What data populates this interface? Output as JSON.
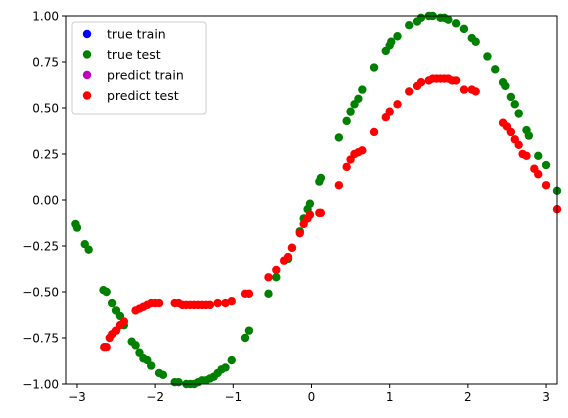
{
  "chart_data": {
    "type": "scatter",
    "title": "",
    "xlabel": "",
    "ylabel": "",
    "xlim": [
      -3.14,
      3.14
    ],
    "ylim": [
      -1.0,
      1.0
    ],
    "x_ticks": [
      -3,
      -2,
      -1,
      0,
      1,
      2,
      3
    ],
    "y_ticks": [
      -1.0,
      -0.75,
      -0.5,
      -0.25,
      0.0,
      0.25,
      0.5,
      0.75,
      1.0
    ],
    "x_tick_labels": [
      "−3",
      "−2",
      "−1",
      "0",
      "1",
      "2",
      "3"
    ],
    "y_tick_labels": [
      "−1.00",
      "−0.75",
      "−0.50",
      "−0.25",
      "0.00",
      "0.25",
      "0.50",
      "0.75",
      "1.00"
    ],
    "grid": false,
    "legend_position": "upper-left",
    "series": [
      {
        "name": "true train",
        "color": "#0000ff",
        "x": [],
        "y": []
      },
      {
        "name": "true test",
        "color": "#008000",
        "x": [
          -3.02,
          -3.0,
          -2.9,
          -2.85,
          -2.66,
          -2.62,
          -2.55,
          -2.5,
          -2.45,
          -2.4,
          -2.3,
          -2.25,
          -2.2,
          -2.15,
          -2.1,
          -2.05,
          -1.95,
          -1.9,
          -1.75,
          -1.7,
          -1.6,
          -1.55,
          -1.5,
          -1.45,
          -1.4,
          -1.35,
          -1.3,
          -1.25,
          -1.2,
          -1.15,
          -1.1,
          -1.02,
          -0.85,
          -0.8,
          -0.55,
          -0.45,
          -0.3,
          -0.25,
          -0.15,
          -0.1,
          -0.05,
          -0.02,
          0.1,
          0.12,
          0.35,
          0.45,
          0.5,
          0.55,
          0.6,
          0.65,
          0.8,
          0.95,
          1.0,
          1.02,
          1.1,
          1.25,
          1.35,
          1.4,
          1.5,
          1.55,
          1.65,
          1.7,
          1.75,
          1.85,
          1.95,
          2.05,
          2.1,
          2.25,
          2.35,
          2.45,
          2.48,
          2.55,
          2.6,
          2.65,
          2.75,
          2.78,
          2.9,
          3.0,
          3.14
        ],
        "y": [
          -0.13,
          -0.15,
          -0.24,
          -0.27,
          -0.49,
          -0.5,
          -0.56,
          -0.6,
          -0.63,
          -0.68,
          -0.77,
          -0.79,
          -0.83,
          -0.86,
          -0.87,
          -0.9,
          -0.94,
          -0.95,
          -0.99,
          -0.99,
          -1.0,
          -1.0,
          -1.0,
          -0.99,
          -0.98,
          -0.98,
          -0.97,
          -0.96,
          -0.94,
          -0.92,
          -0.91,
          -0.87,
          -0.75,
          -0.71,
          -0.51,
          -0.42,
          -0.32,
          -0.26,
          -0.17,
          -0.1,
          -0.05,
          -0.02,
          0.1,
          0.12,
          0.34,
          0.43,
          0.48,
          0.52,
          0.55,
          0.6,
          0.72,
          0.81,
          0.84,
          0.86,
          0.89,
          0.95,
          0.97,
          0.99,
          1.0,
          1.0,
          0.99,
          0.99,
          0.98,
          0.96,
          0.93,
          0.88,
          0.86,
          0.78,
          0.71,
          0.64,
          0.62,
          0.56,
          0.52,
          0.47,
          0.38,
          0.35,
          0.24,
          0.19,
          0.05
        ]
      },
      {
        "name": "predict train",
        "color": "#bf00bf",
        "x": [],
        "y": []
      },
      {
        "name": "predict test",
        "color": "#ff0000",
        "x": [
          -2.65,
          -2.62,
          -2.58,
          -2.55,
          -2.5,
          -2.45,
          -2.4,
          -2.25,
          -2.2,
          -2.15,
          -2.1,
          -2.05,
          -2.0,
          -1.95,
          -1.75,
          -1.7,
          -1.65,
          -1.6,
          -1.55,
          -1.5,
          -1.45,
          -1.4,
          -1.35,
          -1.3,
          -1.2,
          -1.1,
          -1.02,
          -0.85,
          -0.8,
          -0.55,
          -0.45,
          -0.35,
          -0.3,
          -0.25,
          -0.15,
          -0.1,
          -0.05,
          -0.02,
          0.1,
          0.12,
          0.35,
          0.45,
          0.5,
          0.55,
          0.6,
          0.65,
          0.8,
          0.95,
          1.0,
          1.1,
          1.25,
          1.35,
          1.4,
          1.5,
          1.55,
          1.6,
          1.65,
          1.7,
          1.75,
          1.8,
          1.85,
          1.95,
          2.05,
          2.1,
          2.45,
          2.5,
          2.55,
          2.6,
          2.65,
          2.7,
          2.75,
          2.85,
          2.9,
          3.0,
          3.14
        ],
        "y": [
          -0.8,
          -0.8,
          -0.75,
          -0.73,
          -0.71,
          -0.68,
          -0.66,
          -0.6,
          -0.59,
          -0.58,
          -0.57,
          -0.56,
          -0.56,
          -0.56,
          -0.56,
          -0.56,
          -0.57,
          -0.57,
          -0.57,
          -0.57,
          -0.57,
          -0.57,
          -0.57,
          -0.57,
          -0.56,
          -0.56,
          -0.55,
          -0.51,
          -0.51,
          -0.42,
          -0.38,
          -0.33,
          -0.31,
          -0.26,
          -0.18,
          -0.13,
          -0.1,
          -0.08,
          -0.07,
          -0.07,
          0.08,
          0.18,
          0.22,
          0.25,
          0.26,
          0.27,
          0.37,
          0.45,
          0.48,
          0.52,
          0.59,
          0.62,
          0.64,
          0.65,
          0.66,
          0.66,
          0.66,
          0.66,
          0.66,
          0.65,
          0.65,
          0.6,
          0.6,
          0.59,
          0.42,
          0.4,
          0.37,
          0.33,
          0.3,
          0.25,
          0.24,
          0.17,
          0.14,
          0.08,
          -0.05
        ]
      }
    ]
  }
}
